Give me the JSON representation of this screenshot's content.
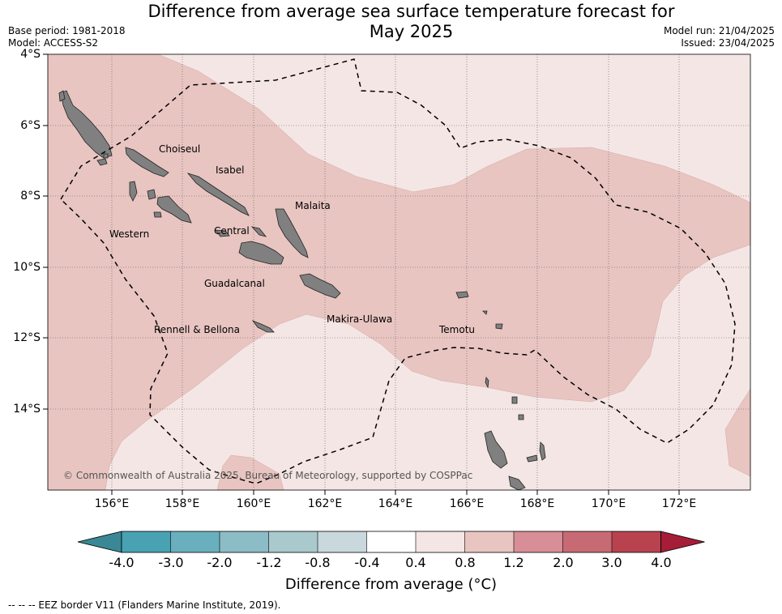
{
  "title": "Difference from average sea surface temperature forecast for May 2025",
  "title_line1": "Difference from average sea surface temperature forecast for",
  "title_line2": "May 2025",
  "meta_left": {
    "base_period": "Base period: 1981-2018",
    "model": "Model: ACCESS-S2"
  },
  "meta_right": {
    "model_run": "Model run: 21/04/2025",
    "issued": "Issued: 23/04/2025"
  },
  "lat_labels": [
    "4°S",
    "6°S",
    "8°S",
    "10°S",
    "12°S",
    "14°S"
  ],
  "lon_labels": [
    "156°E",
    "158°E",
    "160°E",
    "162°E",
    "164°E",
    "166°E",
    "168°E",
    "170°E",
    "172°E"
  ],
  "regions": {
    "choiseul": "Choiseul",
    "isabel": "Isabel",
    "malaita": "Malaita",
    "western": "Western",
    "central": "Central",
    "guadalcanal": "Guadalcanal",
    "makira_ulawa": "Makira-Ulawa",
    "temotu": "Temotu",
    "rennell_bellona": "Rennell & Bellona"
  },
  "copyright": "© Commonwealth of Australia 2025, Bureau of Meteorology, supported by COSPPac",
  "colorbar": {
    "ticks": [
      "-4.0",
      "-3.0",
      "-2.0",
      "-1.2",
      "-0.8",
      "-0.4",
      "0.4",
      "0.8",
      "1.2",
      "2.0",
      "3.0",
      "4.0"
    ],
    "colors": [
      "#3a8896",
      "#48a2b2",
      "#6aafbe",
      "#8cbcc5",
      "#a9c9cc",
      "#c8d8dc",
      "#ffffff",
      "#f4e6e4",
      "#e8c5c1",
      "#d88e96",
      "#c86a74",
      "#b8434f",
      "#a51d37"
    ],
    "title": "Difference from average (°C)"
  },
  "eez_note": "--  --  -- EEZ border V11 (Flanders Marine Institute, 2019).",
  "map_colors": {
    "band_0_4_0_8": "#f4e6e4",
    "band_0_8_1_2": "#e8c5c1",
    "land": "#808080"
  }
}
